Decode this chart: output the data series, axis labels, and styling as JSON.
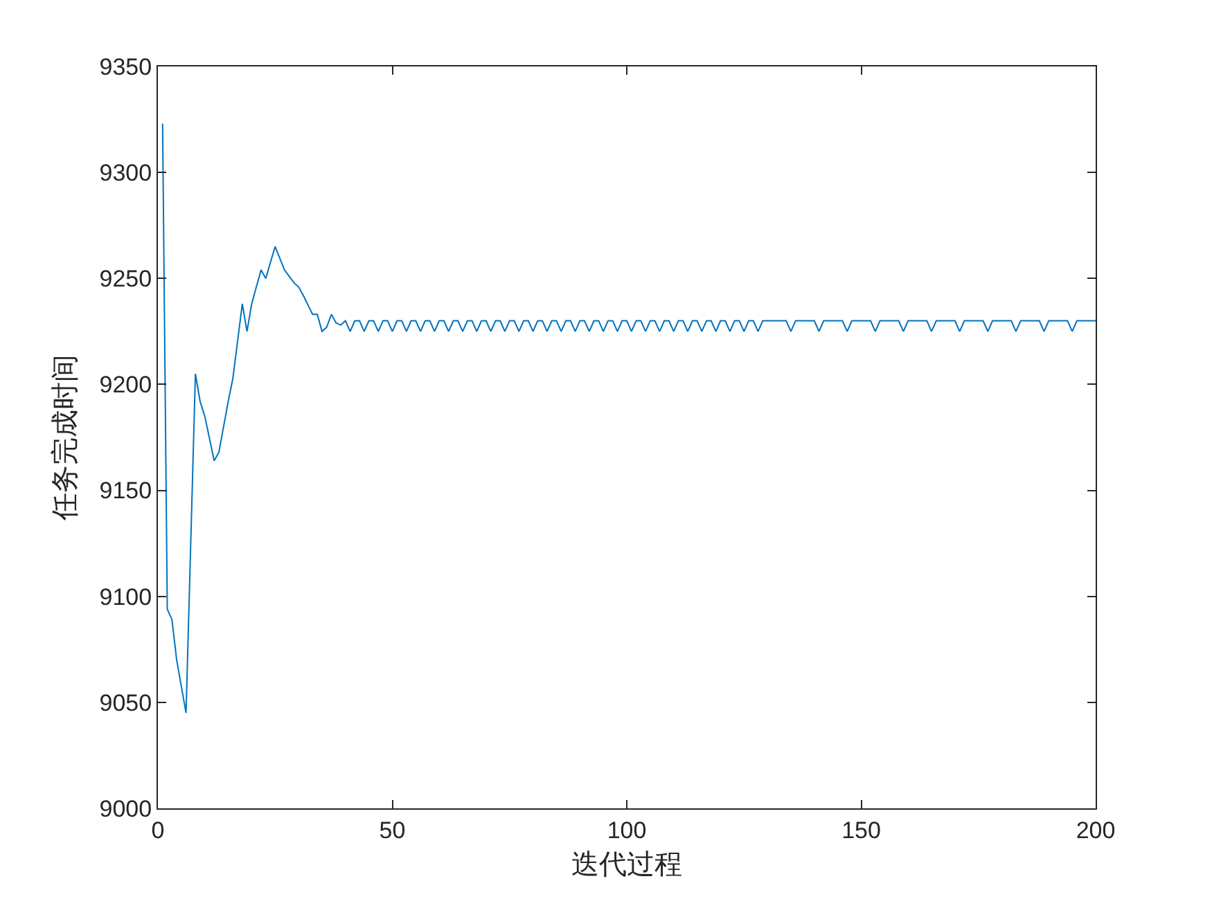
{
  "chart_data": {
    "type": "line",
    "xlabel": "迭代过程",
    "ylabel": "任务完成时间",
    "xlim": [
      0,
      200
    ],
    "xticks": [
      0,
      50,
      100,
      150,
      200
    ],
    "ylim": [
      9000,
      9350
    ],
    "yticks": [
      9000,
      9050,
      9100,
      9150,
      9200,
      9250,
      9300,
      9350
    ],
    "line_style": "solid",
    "series": [
      {
        "color": "#0072bd",
        "x": [
          1,
          2,
          3,
          4,
          6,
          8,
          9,
          10,
          12,
          13,
          15,
          16,
          18,
          19,
          20,
          22,
          23,
          25,
          27,
          29,
          30,
          31,
          33,
          34,
          35,
          36,
          37,
          38,
          39,
          40,
          41,
          42,
          43,
          44,
          45,
          46,
          47,
          48,
          49,
          50,
          51,
          52,
          53,
          54,
          55,
          56,
          57,
          58,
          59,
          60,
          61,
          62,
          63,
          64,
          65,
          66,
          67,
          68,
          69,
          70,
          71,
          72,
          73,
          74,
          75,
          76,
          77,
          78,
          79,
          80,
          81,
          82,
          83,
          84,
          85,
          86,
          87,
          88,
          89,
          90,
          91,
          92,
          93,
          94,
          95,
          96,
          97,
          98,
          99,
          100,
          101,
          102,
          103,
          104,
          105,
          106,
          107,
          108,
          109,
          110,
          111,
          112,
          113,
          114,
          115,
          116,
          117,
          118,
          119,
          120,
          121,
          122,
          123,
          124,
          125,
          126,
          127,
          128,
          129,
          130,
          134,
          135,
          136,
          140,
          141,
          142,
          146,
          147,
          148,
          152,
          153,
          154,
          158,
          159,
          160,
          164,
          165,
          166,
          170,
          171,
          172,
          176,
          177,
          178,
          182,
          183,
          184,
          188,
          189,
          190,
          194,
          195,
          196,
          200
        ],
        "values": [
          9323,
          9094,
          9089,
          9070,
          9045,
          9205,
          9192,
          9185,
          9164,
          9168,
          9192,
          9203,
          9238,
          9225,
          9238,
          9254,
          9250,
          9265,
          9254,
          9248,
          9246,
          9242,
          9233,
          9233,
          9225,
          9227,
          9233,
          9229,
          9228,
          9230,
          9225,
          9230,
          9230,
          9225,
          9230,
          9230,
          9225,
          9230,
          9230,
          9225,
          9230,
          9230,
          9225,
          9230,
          9230,
          9225,
          9230,
          9230,
          9225,
          9230,
          9230,
          9225,
          9230,
          9230,
          9225,
          9230,
          9230,
          9225,
          9230,
          9230,
          9225,
          9230,
          9230,
          9225,
          9230,
          9230,
          9225,
          9230,
          9230,
          9225,
          9230,
          9230,
          9225,
          9230,
          9230,
          9225,
          9230,
          9230,
          9225,
          9230,
          9230,
          9225,
          9230,
          9230,
          9225,
          9230,
          9230,
          9225,
          9230,
          9230,
          9225,
          9230,
          9230,
          9225,
          9230,
          9230,
          9225,
          9230,
          9230,
          9225,
          9230,
          9230,
          9225,
          9230,
          9230,
          9225,
          9230,
          9230,
          9225,
          9230,
          9230,
          9225,
          9230,
          9230,
          9225,
          9230,
          9230,
          9225,
          9230,
          9230,
          9230,
          9225,
          9230,
          9230,
          9225,
          9230,
          9230,
          9225,
          9230,
          9230,
          9225,
          9230,
          9230,
          9225,
          9230,
          9230,
          9225,
          9230,
          9230,
          9225,
          9230,
          9230,
          9225,
          9230,
          9230,
          9225,
          9230,
          9230,
          9225,
          9230,
          9230,
          9225,
          9230,
          9230
        ]
      }
    ]
  }
}
